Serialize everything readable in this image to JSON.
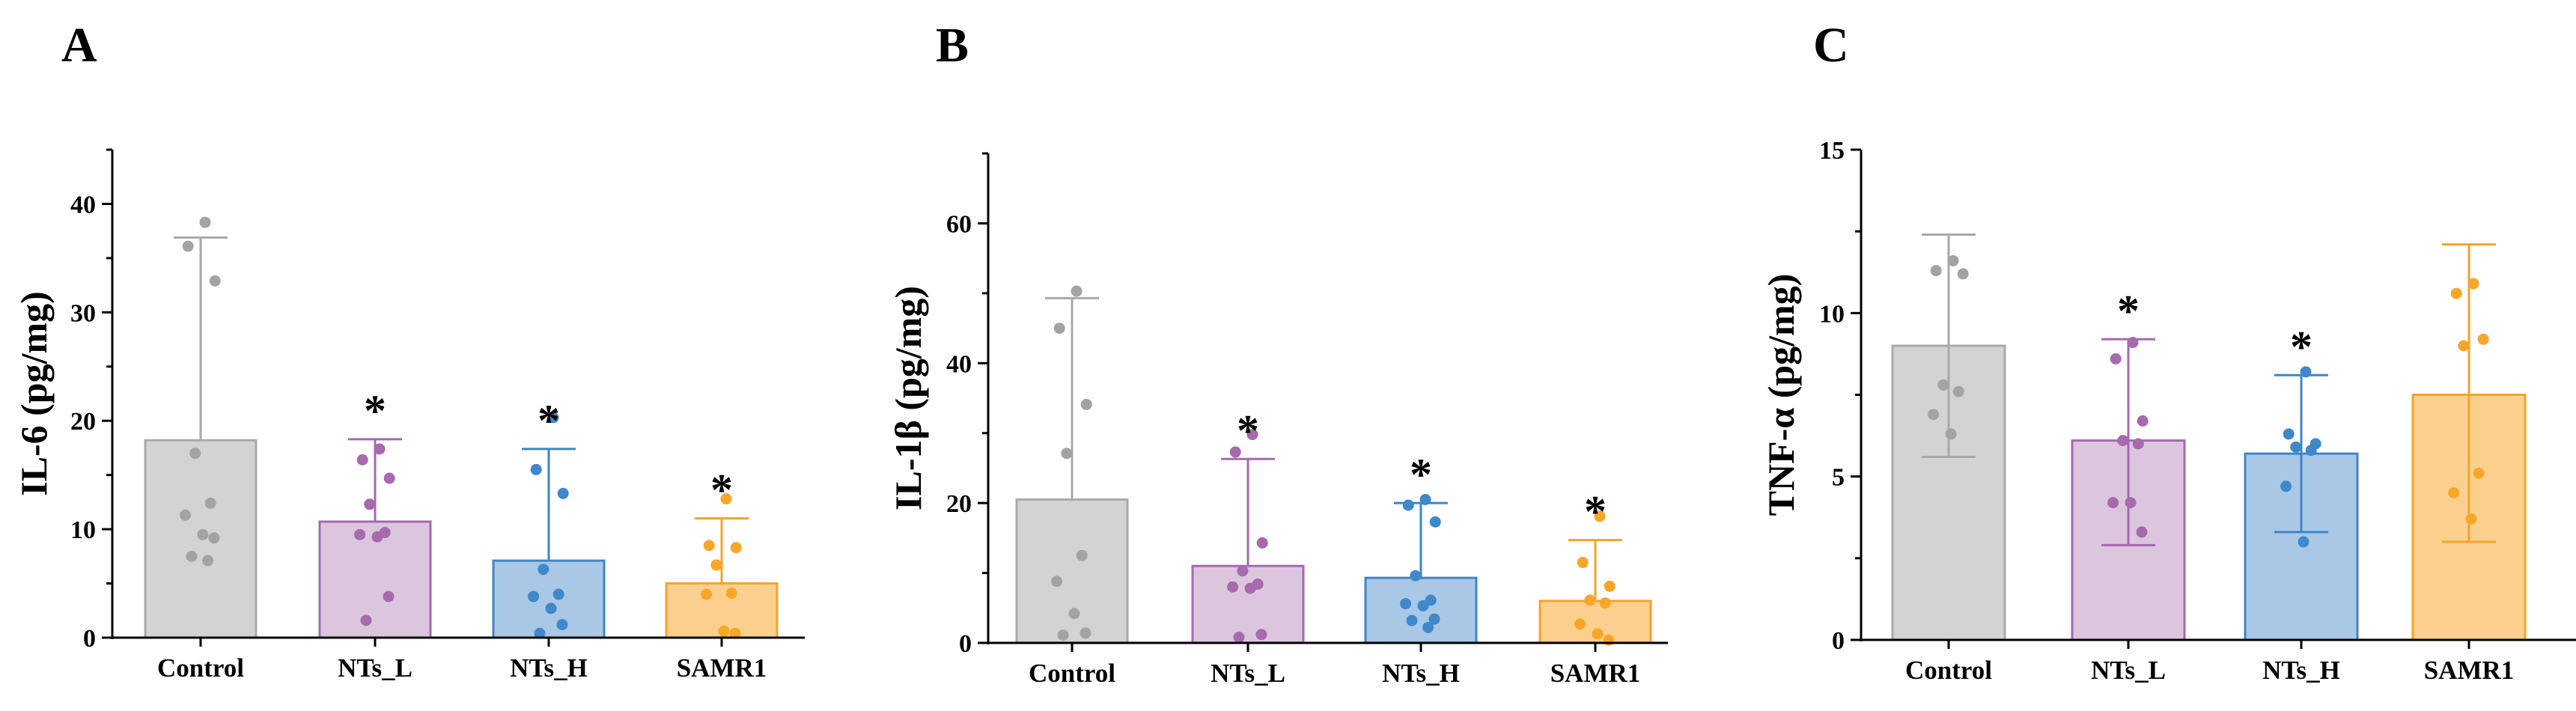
{
  "figure": {
    "colors": {
      "Control": {
        "fill": "#d3d3d3",
        "stroke": "#a9a9a9",
        "dot": "#a3a3a3"
      },
      "NTs_L": {
        "fill": "#dcc6de",
        "stroke": "#a46aae",
        "dot": "#a66aad"
      },
      "NTs_H": {
        "fill": "#a9c8e6",
        "stroke": "#3f85c6",
        "dot": "#3f88cb"
      },
      "SAMR1": {
        "fill": "#fbd08f",
        "stroke": "#f4a32b",
        "dot": "#f8a629"
      }
    }
  },
  "chart_data": [
    {
      "panel": "A",
      "type": "bar",
      "ylabel": "IL-6 (pg/mg)",
      "ylim": [
        0,
        45
      ],
      "yticks": [
        0,
        10,
        20,
        30,
        40
      ],
      "categories": [
        "Control",
        "NTs_L",
        "NTs_H",
        "SAMR1"
      ],
      "values": [
        18.2,
        10.7,
        7.1,
        5.0
      ],
      "error_upper": [
        36.9,
        18.3,
        17.4,
        11.0
      ],
      "significance": [
        "",
        "*",
        "*",
        "*"
      ],
      "points": [
        [
          38.3,
          36.1,
          32.9,
          17.0,
          12.4,
          11.3,
          9.5,
          9.2,
          7.5,
          7.1
        ],
        [
          17.4,
          16.4,
          14.7,
          12.3,
          9.7,
          9.5,
          9.3,
          3.8,
          1.6
        ],
        [
          20.3,
          15.5,
          13.3,
          6.3,
          4.0,
          3.8,
          2.7,
          1.2,
          0.4
        ],
        [
          12.8,
          8.5,
          8.3,
          6.7,
          4.1,
          4.0,
          0.6,
          0.4
        ]
      ]
    },
    {
      "panel": "B",
      "type": "bar",
      "ylabel": "IL-1β (pg/mg)",
      "ylim": [
        0,
        70
      ],
      "yticks": [
        0,
        20,
        40,
        60
      ],
      "categories": [
        "Control",
        "NTs_L",
        "NTs_H",
        "SAMR1"
      ],
      "values": [
        20.5,
        11.0,
        9.3,
        6.0
      ],
      "error_upper": [
        49.3,
        26.3,
        20.0,
        14.7
      ],
      "significance": [
        "",
        "*",
        "*",
        "*"
      ],
      "points": [
        [
          50.3,
          45.0,
          34.1,
          27.1,
          12.5,
          8.8,
          4.2,
          1.4,
          1.1
        ],
        [
          29.8,
          27.3,
          14.3,
          10.3,
          8.4,
          8.0,
          7.8,
          1.2,
          0.8
        ],
        [
          20.5,
          19.7,
          17.3,
          9.6,
          6.1,
          5.6,
          5.3,
          3.4,
          3.2,
          2.2
        ],
        [
          18.1,
          11.5,
          8.1,
          6.1,
          5.7,
          2.7,
          1.3,
          0.4
        ]
      ]
    },
    {
      "panel": "C",
      "type": "bar",
      "ylabel": "TNF-α  (pg/mg)",
      "ylim": [
        0,
        15
      ],
      "yticks": [
        0,
        5,
        10,
        15
      ],
      "categories": [
        "Control",
        "NTs_L",
        "NTs_H",
        "SAMR1"
      ],
      "values": [
        9.0,
        6.1,
        5.7,
        7.5
      ],
      "error_upper": [
        12.4,
        9.2,
        8.1,
        12.1
      ],
      "error_lower": [
        5.6,
        2.9,
        3.3,
        3.0
      ],
      "significance": [
        "",
        "*",
        "*",
        ""
      ],
      "points": [
        [
          11.6,
          11.3,
          11.2,
          7.8,
          7.6,
          6.9,
          6.3
        ],
        [
          9.1,
          8.6,
          6.7,
          6.1,
          6.0,
          4.2,
          4.2,
          3.3
        ],
        [
          8.2,
          6.3,
          6.0,
          5.9,
          5.8,
          4.7,
          3.0
        ],
        [
          10.9,
          10.6,
          9.2,
          9.0,
          5.1,
          4.5,
          3.7
        ]
      ]
    }
  ]
}
